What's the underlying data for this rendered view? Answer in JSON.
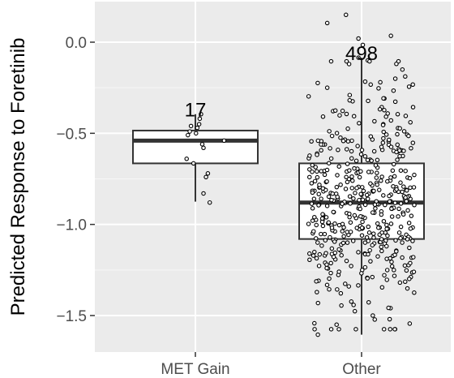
{
  "chart_data": {
    "type": "box",
    "title": "",
    "xlabel": "",
    "ylabel": "Predicted Response to Foretinib",
    "ylim": [
      -1.72,
      0.18
    ],
    "yticks": [
      0.0,
      -0.5,
      -1.0,
      -1.5
    ],
    "ytick_labels": [
      "0.0",
      "−0.5",
      "−1.0",
      "−1.5"
    ],
    "categories": [
      "MET Gain",
      "Other"
    ],
    "grid": true,
    "background": "#ebebeb",
    "grid_color": "#ffffff",
    "boxes": [
      {
        "category": "MET Gain",
        "n_label": "17",
        "q1": -0.665,
        "median": -0.54,
        "q3": -0.485,
        "whisker_low": -0.875,
        "whisker_high": -0.395,
        "points": [
          [
            -0.14,
            -0.64
          ],
          [
            -0.12,
            -0.51
          ],
          [
            -0.09,
            -0.49
          ],
          [
            -0.07,
            -0.46
          ],
          [
            -0.03,
            -0.665
          ],
          [
            0.01,
            -0.5
          ],
          [
            0.03,
            -0.47
          ],
          [
            0.06,
            -0.45
          ],
          [
            0.09,
            -0.395
          ],
          [
            0.07,
            -0.42
          ],
          [
            0.11,
            -0.56
          ],
          [
            0.13,
            -0.58
          ],
          [
            0.13,
            -0.83
          ],
          [
            0.17,
            -0.74
          ],
          [
            0.2,
            -0.72
          ],
          [
            0.23,
            -0.88
          ],
          [
            0.46,
            -0.54
          ]
        ]
      },
      {
        "category": "Other",
        "n_label": "498",
        "q1": -1.08,
        "median": -0.88,
        "q3": -0.665,
        "whisker_low": -1.605,
        "whisker_high": -0.085,
        "points": [
          [
            -0.55,
            0.105
          ],
          [
            -0.25,
            0.15
          ],
          [
            -0.05,
            0.02
          ],
          [
            0.02,
            -0.015
          ],
          [
            0.47,
            0.035
          ],
          [
            -0.2,
            -0.12
          ],
          [
            -0.05,
            -0.085
          ],
          [
            0.1,
            -0.1
          ],
          [
            -0.55,
            -0.25
          ],
          [
            0.3,
            -0.22
          ],
          [
            -0.7,
            -1.605
          ],
          [
            0.36,
            -1.575
          ],
          [
            0.18,
            -1.5
          ],
          [
            -0.4,
            -1.55
          ],
          [
            0.45,
            -1.52
          ]
        ],
        "jitter_count": 480,
        "jitter_seed": 498
      }
    ],
    "point_style": {
      "fill": "#ffffff",
      "stroke": "#000000"
    },
    "box_style": {
      "fill": "#ffffff",
      "stroke": "#333333"
    }
  }
}
